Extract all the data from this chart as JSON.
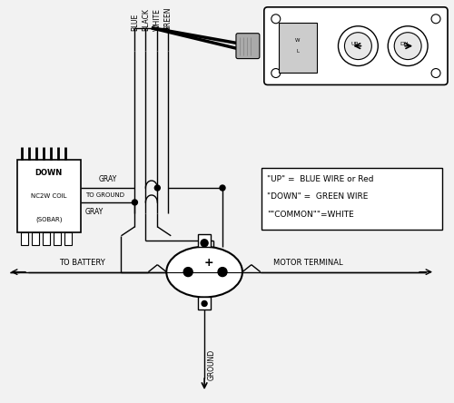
{
  "bg_color": "#f2f2f2",
  "line_color": "#000000",
  "legend_text": [
    "\"UP\" =  BLUE WIRE or Red",
    "\"DOWN\" =  GREEN WIRE",
    "\"\"COMMON\"\"=WHITE"
  ],
  "wire_labels": [
    "BLUE",
    "BLACK",
    "WHITE",
    "GREEN"
  ],
  "coil_texts": [
    "DOWN",
    "NC2W COIL",
    "(SOBAR)"
  ],
  "ground_label": "GROUND",
  "battery_label": "TO BATTERY",
  "motor_label": "MOTOR TERMINAL",
  "gray_label": "GRAY",
  "toground_label": "TO GROUND",
  "gray2_label": "GRAY"
}
